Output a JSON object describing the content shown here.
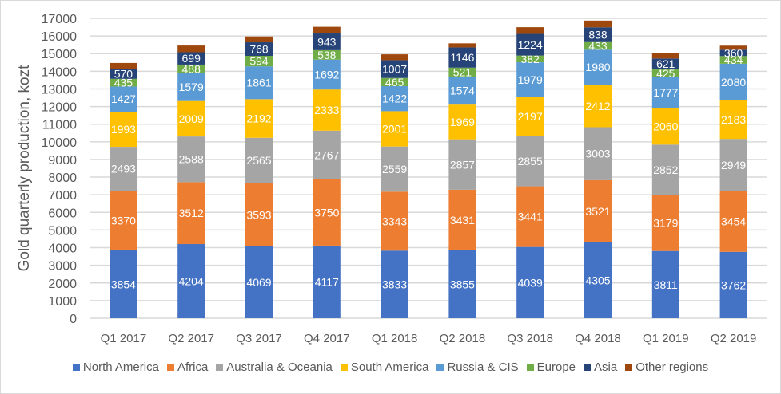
{
  "chart_data": {
    "type": "bar",
    "stacked": true,
    "title": "",
    "xlabel": "",
    "ylabel": "Gold quarterly production, kozt",
    "ylim": [
      0,
      17000
    ],
    "ytick_step": 1000,
    "grid": true,
    "legend_position": "bottom",
    "categories": [
      "Q1 2017",
      "Q2 2017",
      "Q3 2017",
      "Q4 2017",
      "Q1 2018",
      "Q2 2018",
      "Q3 2018",
      "Q4 2018",
      "Q1 2019",
      "Q2 2019"
    ],
    "series": [
      {
        "name": "North America",
        "color": "#4472c4",
        "labeled": true,
        "values": [
          3854,
          4204,
          4069,
          4117,
          3833,
          3855,
          4039,
          4305,
          3811,
          3762
        ]
      },
      {
        "name": "Africa",
        "color": "#ed7d31",
        "labeled": true,
        "values": [
          3370,
          3512,
          3593,
          3750,
          3343,
          3431,
          3441,
          3521,
          3179,
          3454
        ]
      },
      {
        "name": "Australia & Oceania",
        "color": "#a5a5a5",
        "labeled": true,
        "values": [
          2493,
          2588,
          2565,
          2767,
          2559,
          2857,
          2855,
          3003,
          2852,
          2949
        ]
      },
      {
        "name": "South America",
        "color": "#ffc000",
        "labeled": true,
        "values": [
          1993,
          2009,
          2192,
          2333,
          2001,
          1969,
          2197,
          2412,
          2060,
          2183
        ]
      },
      {
        "name": "Russia & CIS",
        "color": "#5b9bd5",
        "labeled": true,
        "values": [
          1427,
          1579,
          1861,
          1692,
          1422,
          1574,
          1979,
          1980,
          1777,
          2080
        ]
      },
      {
        "name": "Europe",
        "color": "#70ad47",
        "labeled": true,
        "values": [
          435,
          488,
          594,
          538,
          465,
          521,
          382,
          433,
          425,
          434
        ]
      },
      {
        "name": "Asia",
        "color": "#264478",
        "labeled": true,
        "values": [
          570,
          699,
          768,
          943,
          1007,
          1146,
          1224,
          838,
          621,
          360
        ]
      },
      {
        "name": "Other regions",
        "color": "#9e480e",
        "labeled": false,
        "values": [
          330,
          380,
          330,
          380,
          330,
          230,
          380,
          380,
          330,
          230
        ]
      }
    ]
  }
}
